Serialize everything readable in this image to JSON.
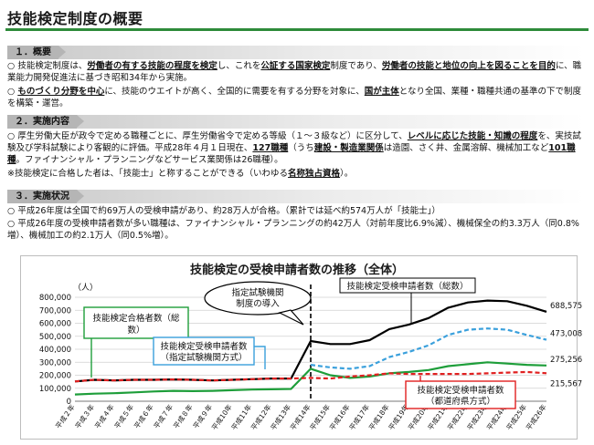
{
  "page": {
    "title": "技能検定制度の概要"
  },
  "section1": {
    "header": "１．概要",
    "p1": {
      "bullet": "○",
      "t1": "技能検定制度は、",
      "u1": "労働者の有する技能の程度を検定",
      "t2": "し、これを",
      "u2": "公証する国家検定",
      "t3": "制度であり、",
      "u3": "労働者の技能と地位の向上を図ることを目的",
      "t4": "に、職業能力開発促進法に基づき昭和34年から実施。"
    },
    "p2": {
      "bullet": "○",
      "u1": "ものづくり分野を中心",
      "t1": "に、技能のウエイトが高く、全国的に需要を有する分野を対象に、",
      "u2": "国が主体",
      "t2": "となり全国、業種・職種共通の基準の下で制度を構築・運営。"
    }
  },
  "section2": {
    "header": "２．実施内容",
    "p1": {
      "bullet": "○",
      "t1": "厚生労働大臣が政令で定める職種ごとに、厚生労働省令で定める等級（１～３級など）に区分して、",
      "u1": "レベルに応じた技能・知識の程度",
      "t2": "を、実技試験及び学科試験により客観的に評価。平成28年４月１日現在、",
      "u2": "127職種",
      "t3": "（うち",
      "u3": "建設・製造業関係",
      "t4": "は造園、さく井、金属溶解、機械加工など",
      "u4": "101職種",
      "t5": "。ファイナンシャル・プランニングなどサービス業関係は26職種）。"
    },
    "note": {
      "t1": "※技能検定に合格した者は、「技能士」と称することができる（いわゆる",
      "u1": "名称独占資格",
      "t2": "）。"
    }
  },
  "section3": {
    "header": "３．実施状況",
    "p1": {
      "bullet": "○",
      "t1": "平成26年度は全国で約69万人の受検申請があり、約28万人が合格。（累計では延べ約574万人が「技能士」）"
    },
    "p2": {
      "bullet": "○",
      "t1": "平成26年度の受検申請者数が多い職種は、ファイナンシャル・プランニングの約42万人（対前年度比6.9%減）、機械保全の約3.3万人（同0.8%増）、機械加工の約2.1万人（同0.5%増）。"
    }
  },
  "chart_data": {
    "type": "line",
    "title": "技能検定の受検申請者数の推移（全体）",
    "ylabel": "（人）",
    "ylim": [
      0,
      800000
    ],
    "yticks": [
      0,
      100000,
      200000,
      300000,
      400000,
      500000,
      600000,
      700000,
      800000
    ],
    "ytick_labels": [
      "0",
      "100,000",
      "200,000",
      "300,000",
      "400,000",
      "500,000",
      "600,000",
      "700,000",
      "800,000"
    ],
    "categories": [
      "平成２年",
      "平成３年",
      "平成４年",
      "平成５年",
      "平成６年",
      "平成７年",
      "平成８年",
      "平成９年",
      "平成10年",
      "平成11年",
      "平成12年",
      "平成13年",
      "平成14年",
      "平成15年",
      "平成16年",
      "平成17年",
      "平成18年",
      "平成19年",
      "平成20年",
      "平成21年",
      "平成22年",
      "平成23年",
      "平成24年",
      "平成25年",
      "平成26年"
    ],
    "x_tick_labels": [
      "平成２年",
      "平成４年",
      "平成６年",
      "平成８年",
      "平成10年",
      "平成12年",
      "平成14年",
      "平成16年",
      "平成18年",
      "平成20年",
      "平成22年",
      "平成24年",
      "平成26年",
      "平成３年",
      "平成５年",
      "平成７年",
      "平成９年",
      "平成11年",
      "平成13年",
      "平成15年",
      "平成17年",
      "平成19年",
      "平成21年",
      "平成23年",
      "平成25年"
    ],
    "series": [
      {
        "name": "技能検定受検申請者数（総数）",
        "color": "#000000",
        "dash": false,
        "values": [
          152000,
          165000,
          160000,
          165000,
          165000,
          168000,
          165000,
          160000,
          165000,
          170000,
          175000,
          175000,
          463000,
          440000,
          440000,
          470000,
          555000,
          590000,
          640000,
          720000,
          760000,
          775000,
          770000,
          735000,
          688575
        ],
        "end_label": "688,575"
      },
      {
        "name": "技能検定受検申請者数（指定試験機関方式）",
        "color": "#3aa0dc",
        "dash": true,
        "values": [
          null,
          null,
          null,
          null,
          null,
          null,
          null,
          null,
          null,
          null,
          null,
          null,
          280000,
          260000,
          250000,
          270000,
          340000,
          380000,
          430000,
          510000,
          550000,
          560000,
          550000,
          510000,
          473008
        ],
        "end_label": "473,008"
      },
      {
        "name": "技能検定合格者数（総数）",
        "color": "#1e9e3a",
        "dash": false,
        "values": [
          52000,
          58000,
          62000,
          68000,
          75000,
          80000,
          78000,
          80000,
          85000,
          90000,
          92000,
          95000,
          250000,
          200000,
          180000,
          190000,
          215000,
          225000,
          240000,
          270000,
          285000,
          300000,
          290000,
          280000,
          275256
        ],
        "end_label": "275,256"
      },
      {
        "name": "技能検定受検申請者数（都道府県方式）",
        "color": "#e02020",
        "dash": true,
        "values": [
          152000,
          165000,
          160000,
          165000,
          165000,
          168000,
          165000,
          160000,
          165000,
          170000,
          175000,
          175000,
          180000,
          175000,
          190000,
          200000,
          215000,
          210000,
          210000,
          210000,
          210000,
          215000,
          220000,
          225000,
          215567
        ],
        "end_label": "215,567"
      }
    ],
    "annotation": {
      "line1": "指定試験機関",
      "line2": "制度の導入"
    },
    "callouts": {
      "total": "技能検定受検申請者数（総数）",
      "passed_l1": "技能検定合格者数（総",
      "passed_l2": "数）",
      "designated_l1": "技能検定受検申請者数",
      "designated_l2": "（指定試験機関方式）",
      "prefecture_l1": "技能検定受検申請者数",
      "prefecture_l2": "（都道府県方式）"
    }
  }
}
